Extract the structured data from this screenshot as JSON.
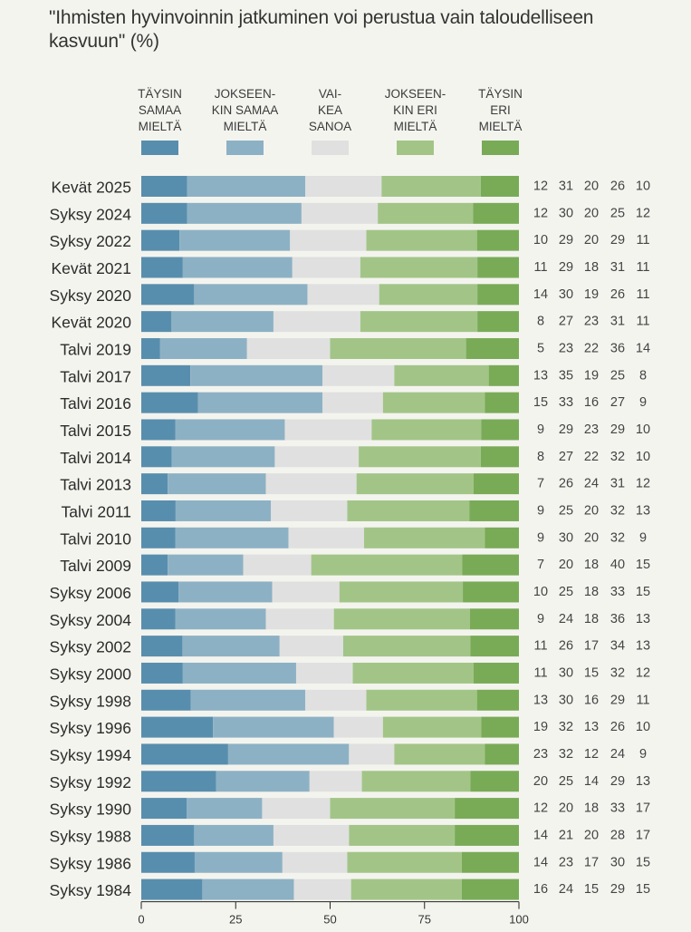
{
  "title": "\"Ihmisten hyvinvoinnin jatkuminen voi perustua vain taloudelliseen kasvuun\" (%)",
  "chart_data": {
    "type": "bar",
    "orientation": "horizontal",
    "stacked": true,
    "normalized": true,
    "title": "\"Ihmisten hyvinvoinnin jatkuminen voi perustua vain taloudelliseen kasvuun\" (%)",
    "xlabel": "",
    "ylabel": "",
    "xlim": [
      0,
      100
    ],
    "xticks": [
      0,
      25,
      50,
      75,
      100
    ],
    "grid": false,
    "legend_position": "top",
    "categories": [
      "Kevät 2025",
      "Syksy 2024",
      "Syksy 2022",
      "Kevät 2021",
      "Syksy 2020",
      "Kevät 2020",
      "Talvi 2019",
      "Talvi 2017",
      "Talvi 2016",
      "Talvi 2015",
      "Talvi 2014",
      "Talvi 2013",
      "Talvi 2011",
      "Talvi 2010",
      "Talvi 2009",
      "Syksy 2006",
      "Syksy 2004",
      "Syksy 2002",
      "Syksy 2000",
      "Syksy 1998",
      "Syksy 1996",
      "Syksy 1994",
      "Syksy 1992",
      "Syksy 1990",
      "Syksy 1988",
      "Syksy 1986",
      "Syksy 1984"
    ],
    "series": [
      {
        "name": "Täysin samaa mieltä",
        "legend_lines": [
          "TÄYSIN",
          "SAMAA",
          "MIELTÄ"
        ],
        "color": "#588ead",
        "values": [
          12,
          12,
          10,
          11,
          14,
          8,
          5,
          13,
          15,
          9,
          8,
          7,
          9,
          9,
          7,
          10,
          9,
          11,
          11,
          13,
          19,
          23,
          20,
          12,
          14,
          14,
          16
        ]
      },
      {
        "name": "Jokseenkin samaa mieltä",
        "legend_lines": [
          "JOKSEEN-",
          "KIN SAMAA",
          "MIELTÄ"
        ],
        "color": "#8db1c4",
        "values": [
          31,
          30,
          29,
          29,
          30,
          27,
          23,
          35,
          33,
          29,
          27,
          26,
          25,
          30,
          20,
          25,
          24,
          26,
          30,
          30,
          32,
          32,
          25,
          20,
          21,
          23,
          24
        ]
      },
      {
        "name": "Vaikea sanoa",
        "legend_lines": [
          "VAI-",
          "KEA",
          "SANOA"
        ],
        "color": "#e0e0e0",
        "values": [
          20,
          20,
          20,
          18,
          19,
          23,
          22,
          19,
          16,
          23,
          22,
          24,
          20,
          20,
          18,
          18,
          18,
          17,
          15,
          16,
          13,
          12,
          14,
          18,
          20,
          17,
          15
        ]
      },
      {
        "name": "Jokseenkin eri mieltä",
        "legend_lines": [
          "JOKSEEN-",
          "KIN ERI",
          "MIELTÄ"
        ],
        "color": "#a2c587",
        "values": [
          26,
          25,
          29,
          31,
          26,
          31,
          36,
          25,
          27,
          29,
          32,
          31,
          32,
          32,
          40,
          33,
          36,
          34,
          32,
          29,
          26,
          24,
          29,
          33,
          28,
          30,
          29
        ]
      },
      {
        "name": "Täysin eri mieltä",
        "legend_lines": [
          "TÄYSIN",
          "ERI",
          "MIELTÄ"
        ],
        "color": "#79ab57",
        "values": [
          10,
          12,
          11,
          11,
          11,
          11,
          14,
          8,
          9,
          10,
          10,
          12,
          13,
          9,
          15,
          15,
          13,
          13,
          12,
          11,
          10,
          9,
          13,
          17,
          17,
          15,
          15
        ]
      }
    ]
  }
}
